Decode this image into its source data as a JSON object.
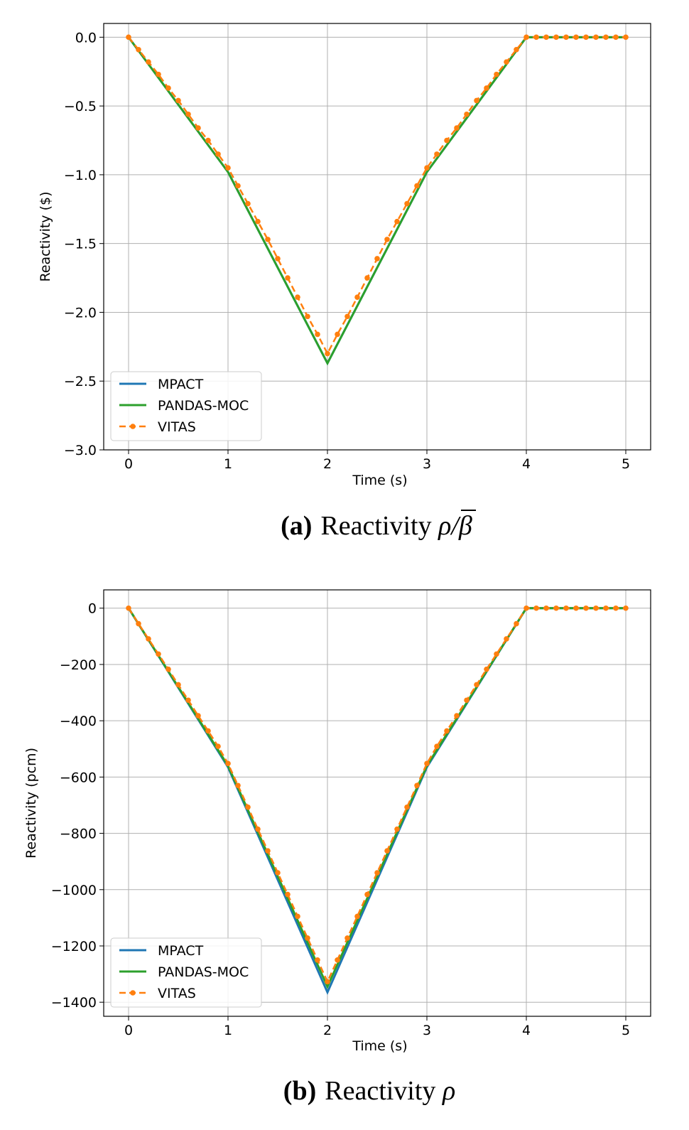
{
  "figure": {
    "captions": [
      {
        "tag": "(a)",
        "text": "Reactivity ",
        "math": "ρ/β"
      },
      {
        "tag": "(b)",
        "text": "Reactivity ",
        "math": "ρ"
      }
    ]
  },
  "colors": {
    "MPACT": "#1f77b4",
    "PANDAS-MOC": "#2ca02c",
    "VITAS": "#ff7f0e",
    "grid": "#b0b0b0"
  },
  "chart_data": [
    {
      "type": "line",
      "xlabel": "Time (s)",
      "ylabel": "Reactivity ($)",
      "xlim": [
        -0.25,
        5.25
      ],
      "ylim": [
        -3.0,
        0.1
      ],
      "xticks": [
        0,
        1,
        2,
        3,
        4,
        5
      ],
      "xtick_labels": [
        "0",
        "1",
        "2",
        "3",
        "4",
        "5"
      ],
      "yticks": [
        0.0,
        -0.5,
        -1.0,
        -1.5,
        -2.0,
        -2.5,
        -3.0
      ],
      "ytick_labels": [
        "0.0",
        "−0.5",
        "−1.0",
        "−1.5",
        "−2.0",
        "−2.5",
        "−3.0"
      ],
      "grid": true,
      "legend_position": "lower-left",
      "series": [
        {
          "name": "MPACT",
          "style": "solid",
          "x": [
            0,
            1,
            2,
            3,
            4,
            5
          ],
          "y": [
            0.0,
            -0.98,
            -2.37,
            -0.98,
            0.0,
            0.0
          ]
        },
        {
          "name": "PANDAS-MOC",
          "style": "solid",
          "x": [
            0,
            1,
            2,
            3,
            4,
            5
          ],
          "y": [
            0.0,
            -0.98,
            -2.37,
            -0.98,
            0.0,
            0.0
          ]
        },
        {
          "name": "VITAS",
          "style": "dashed-markers",
          "x": [
            0,
            0.1,
            0.2,
            0.3,
            0.4,
            0.5,
            0.6,
            0.7,
            0.8,
            0.9,
            1.0,
            1.1,
            1.2,
            1.3,
            1.4,
            1.5,
            1.6,
            1.7,
            1.8,
            1.9,
            2.0,
            2.1,
            2.2,
            2.3,
            2.4,
            2.5,
            2.6,
            2.7,
            2.8,
            2.9,
            3.0,
            3.1,
            3.2,
            3.3,
            3.4,
            3.5,
            3.6,
            3.7,
            3.8,
            3.9,
            4.0,
            4.1,
            4.2,
            4.3,
            4.4,
            4.5,
            4.6,
            4.7,
            4.8,
            4.9,
            5.0
          ],
          "y": [
            0.0,
            -0.09,
            -0.18,
            -0.27,
            -0.37,
            -0.46,
            -0.56,
            -0.66,
            -0.75,
            -0.85,
            -0.95,
            -1.08,
            -1.21,
            -1.34,
            -1.47,
            -1.61,
            -1.75,
            -1.89,
            -2.03,
            -2.16,
            -2.3,
            -2.16,
            -2.03,
            -1.89,
            -1.75,
            -1.61,
            -1.47,
            -1.34,
            -1.21,
            -1.08,
            -0.95,
            -0.85,
            -0.75,
            -0.66,
            -0.56,
            -0.46,
            -0.37,
            -0.27,
            -0.18,
            -0.09,
            0.0,
            0.0,
            0.0,
            0.0,
            0.0,
            0.0,
            0.0,
            0.0,
            0.0,
            0.0,
            0.0
          ]
        }
      ]
    },
    {
      "type": "line",
      "xlabel": "Time (s)",
      "ylabel": "Reactivity (pcm)",
      "xlim": [
        -0.25,
        5.25
      ],
      "ylim": [
        -1450,
        65
      ],
      "xticks": [
        0,
        1,
        2,
        3,
        4,
        5
      ],
      "xtick_labels": [
        "0",
        "1",
        "2",
        "3",
        "4",
        "5"
      ],
      "yticks": [
        0,
        -200,
        -400,
        -600,
        -800,
        -1000,
        -1200,
        -1400
      ],
      "ytick_labels": [
        "0",
        "−200",
        "−400",
        "−600",
        "−800",
        "−1000",
        "−1200",
        "−1400"
      ],
      "grid": true,
      "legend_position": "lower-left",
      "series": [
        {
          "name": "MPACT",
          "style": "solid",
          "x": [
            0,
            1,
            2,
            3,
            4,
            5
          ],
          "y": [
            0,
            -565,
            -1365,
            -565,
            0,
            0
          ]
        },
        {
          "name": "PANDAS-MOC",
          "style": "solid",
          "x": [
            0,
            1,
            2,
            3,
            4,
            5
          ],
          "y": [
            0,
            -560,
            -1345,
            -560,
            0,
            0
          ]
        },
        {
          "name": "VITAS",
          "style": "dashed-markers",
          "x": [
            0,
            0.1,
            0.2,
            0.3,
            0.4,
            0.5,
            0.6,
            0.7,
            0.8,
            0.9,
            1.0,
            1.1,
            1.2,
            1.3,
            1.4,
            1.5,
            1.6,
            1.7,
            1.8,
            1.9,
            2.0,
            2.1,
            2.2,
            2.3,
            2.4,
            2.5,
            2.6,
            2.7,
            2.8,
            2.9,
            3.0,
            3.1,
            3.2,
            3.3,
            3.4,
            3.5,
            3.6,
            3.7,
            3.8,
            3.9,
            4.0,
            4.1,
            4.2,
            4.3,
            4.4,
            4.5,
            4.6,
            4.7,
            4.8,
            4.9,
            5.0
          ],
          "y": [
            0,
            -55,
            -109,
            -163,
            -217,
            -272,
            -327,
            -382,
            -436,
            -491,
            -552,
            -630,
            -707,
            -785,
            -862,
            -940,
            -1017,
            -1095,
            -1172,
            -1250,
            -1327,
            -1250,
            -1172,
            -1095,
            -1017,
            -940,
            -862,
            -785,
            -707,
            -630,
            -552,
            -491,
            -436,
            -382,
            -327,
            -272,
            -217,
            -163,
            -109,
            -55,
            0,
            0,
            0,
            0,
            0,
            0,
            0,
            0,
            0,
            0,
            0
          ]
        }
      ]
    }
  ]
}
